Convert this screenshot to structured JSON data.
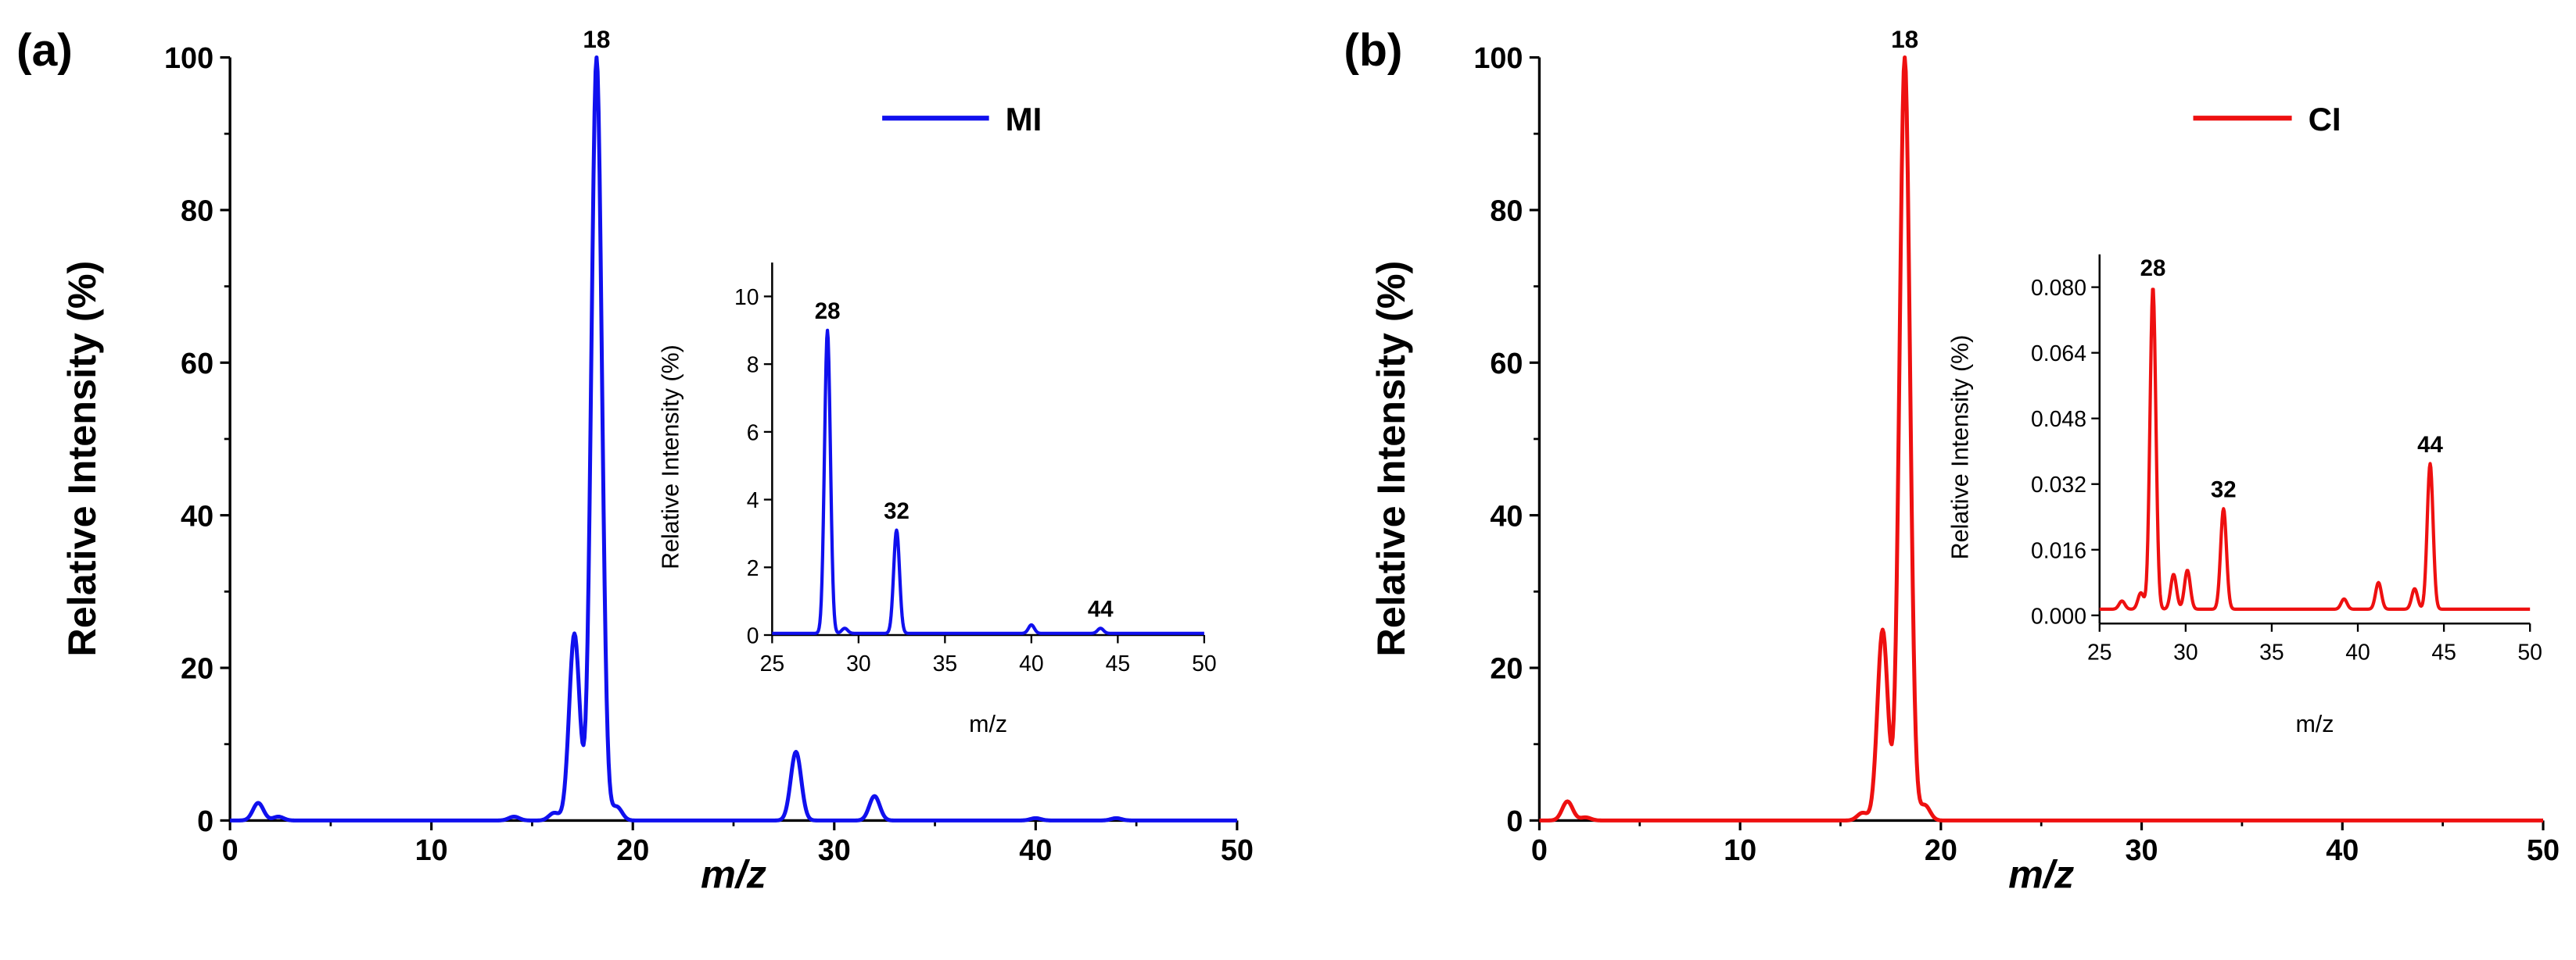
{
  "chart_data": [
    {
      "panel": "(a)",
      "type": "line",
      "color": "#1010ee",
      "xlabel": "m/z",
      "ylabel": "Relative Intensity (%)",
      "xlim": [
        0,
        50
      ],
      "ylim": [
        0,
        100
      ],
      "xticks": [
        0,
        10,
        20,
        30,
        40,
        50
      ],
      "yticks": [
        0,
        20,
        40,
        60,
        80,
        100
      ],
      "legend": "MI",
      "legend_position": "top-right",
      "peaks": [
        {
          "x": 1.4,
          "y": 2.3
        },
        {
          "x": 2.4,
          "y": 0.5
        },
        {
          "x": 14.1,
          "y": 0.5
        },
        {
          "x": 16.1,
          "y": 1.0
        },
        {
          "x": 17.1,
          "y": 24.5
        },
        {
          "x": 18.2,
          "y": 100,
          "label": "18"
        },
        {
          "x": 19.2,
          "y": 1.8
        },
        {
          "x": 28.1,
          "y": 9.0
        },
        {
          "x": 32.0,
          "y": 3.2
        },
        {
          "x": 40.0,
          "y": 0.3
        },
        {
          "x": 44.0,
          "y": 0.3
        }
      ],
      "inset": {
        "xlabel": "m/z",
        "ylabel": "Relative Intensity (%)",
        "xlim": [
          25,
          50
        ],
        "ylim": [
          0,
          11
        ],
        "xticks": [
          25,
          30,
          35,
          40,
          45,
          50
        ],
        "yticks": [
          0,
          2,
          4,
          6,
          8,
          10
        ],
        "baseline": 0.05,
        "peaks": [
          {
            "x": 28.2,
            "y": 9.0,
            "label": "28"
          },
          {
            "x": 29.2,
            "y": 0.2
          },
          {
            "x": 32.2,
            "y": 3.1,
            "label": "32"
          },
          {
            "x": 40.0,
            "y": 0.3
          },
          {
            "x": 44.0,
            "y": 0.2,
            "label": "44"
          }
        ]
      }
    },
    {
      "panel": "(b)",
      "type": "line",
      "color": "#ee1010",
      "xlabel": "m/z",
      "ylabel": "Relative Intensity (%)",
      "xlim": [
        0,
        50
      ],
      "ylim": [
        0,
        100
      ],
      "xticks": [
        0,
        10,
        20,
        30,
        40,
        50
      ],
      "yticks": [
        0,
        20,
        40,
        60,
        80,
        100
      ],
      "legend": "CI",
      "legend_position": "top-right",
      "peaks": [
        {
          "x": 1.4,
          "y": 2.5
        },
        {
          "x": 2.3,
          "y": 0.4
        },
        {
          "x": 16.1,
          "y": 1.0
        },
        {
          "x": 17.1,
          "y": 25.0
        },
        {
          "x": 18.2,
          "y": 100,
          "label": "18"
        },
        {
          "x": 19.2,
          "y": 2.0
        }
      ],
      "inset": {
        "xlabel": "m/z",
        "ylabel": "Relative Intensity (%)",
        "xlim": [
          25,
          50
        ],
        "ylim": [
          -0.002,
          0.088
        ],
        "xticks": [
          25,
          30,
          35,
          40,
          45,
          50
        ],
        "yticks": [
          "0.000",
          "0.016",
          "0.032",
          "0.048",
          "0.064",
          "0.080"
        ],
        "baseline": 0.0015,
        "peaks": [
          {
            "x": 26.3,
            "y": 0.0035
          },
          {
            "x": 27.4,
            "y": 0.0055
          },
          {
            "x": 28.1,
            "y": 0.08,
            "label": "28"
          },
          {
            "x": 29.3,
            "y": 0.01
          },
          {
            "x": 30.1,
            "y": 0.011
          },
          {
            "x": 32.2,
            "y": 0.026,
            "label": "32"
          },
          {
            "x": 39.2,
            "y": 0.004
          },
          {
            "x": 41.2,
            "y": 0.008
          },
          {
            "x": 43.3,
            "y": 0.0065
          },
          {
            "x": 44.2,
            "y": 0.037,
            "label": "44"
          }
        ]
      }
    }
  ]
}
